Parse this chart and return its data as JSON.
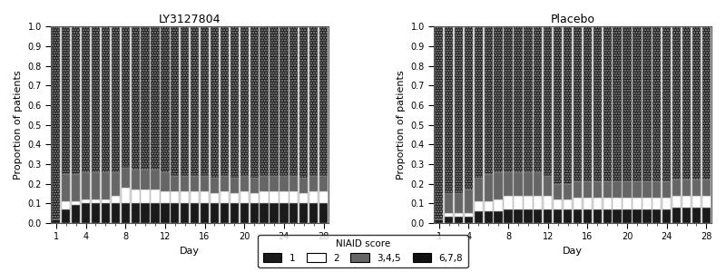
{
  "title_left": "LY3127804",
  "title_right": "Placebo",
  "xlabel": "Day",
  "ylabel": "Proportion of patients",
  "legend_title": "NIAID score",
  "legend_labels": [
    "1",
    "2",
    "3,4,5",
    "6,7,8"
  ],
  "days": [
    1,
    2,
    3,
    4,
    5,
    6,
    7,
    8,
    9,
    10,
    11,
    12,
    13,
    14,
    15,
    16,
    17,
    18,
    19,
    20,
    21,
    22,
    23,
    24,
    25,
    26,
    27,
    28
  ],
  "xticks": [
    1,
    4,
    8,
    12,
    16,
    20,
    24,
    28
  ],
  "yticks": [
    0.0,
    0.1,
    0.2,
    0.3,
    0.4,
    0.5,
    0.6,
    0.7,
    0.8,
    0.9,
    1.0
  ],
  "ly_score1": [
    0.02,
    0.07,
    0.09,
    0.1,
    0.1,
    0.1,
    0.1,
    0.1,
    0.1,
    0.1,
    0.1,
    0.1,
    0.1,
    0.1,
    0.1,
    0.1,
    0.1,
    0.1,
    0.1,
    0.1,
    0.1,
    0.1,
    0.1,
    0.1,
    0.1,
    0.1,
    0.1,
    0.1
  ],
  "ly_score2": [
    0.0,
    0.04,
    0.02,
    0.02,
    0.02,
    0.02,
    0.04,
    0.08,
    0.07,
    0.07,
    0.07,
    0.06,
    0.06,
    0.06,
    0.06,
    0.06,
    0.05,
    0.06,
    0.05,
    0.06,
    0.05,
    0.06,
    0.06,
    0.06,
    0.06,
    0.05,
    0.06,
    0.06
  ],
  "ly_score345": [
    0.0,
    0.14,
    0.14,
    0.14,
    0.14,
    0.14,
    0.12,
    0.1,
    0.1,
    0.1,
    0.1,
    0.1,
    0.08,
    0.08,
    0.08,
    0.08,
    0.08,
    0.08,
    0.08,
    0.08,
    0.08,
    0.08,
    0.08,
    0.08,
    0.08,
    0.08,
    0.08,
    0.08
  ],
  "ly_score678": [
    0.98,
    0.75,
    0.75,
    0.74,
    0.74,
    0.74,
    0.74,
    0.72,
    0.73,
    0.73,
    0.73,
    0.74,
    0.76,
    0.76,
    0.76,
    0.76,
    0.77,
    0.76,
    0.77,
    0.76,
    0.77,
    0.76,
    0.76,
    0.76,
    0.76,
    0.77,
    0.76,
    0.76
  ],
  "pl_score1": [
    0.02,
    0.03,
    0.03,
    0.03,
    0.06,
    0.06,
    0.06,
    0.07,
    0.07,
    0.07,
    0.07,
    0.07,
    0.07,
    0.07,
    0.07,
    0.07,
    0.07,
    0.07,
    0.07,
    0.07,
    0.07,
    0.07,
    0.07,
    0.07,
    0.08,
    0.08,
    0.08,
    0.08
  ],
  "pl_score2": [
    0.0,
    0.02,
    0.02,
    0.02,
    0.05,
    0.05,
    0.06,
    0.07,
    0.07,
    0.07,
    0.07,
    0.07,
    0.05,
    0.05,
    0.06,
    0.06,
    0.06,
    0.06,
    0.06,
    0.06,
    0.06,
    0.06,
    0.06,
    0.06,
    0.06,
    0.06,
    0.06,
    0.06
  ],
  "pl_score345": [
    0.0,
    0.1,
    0.1,
    0.12,
    0.12,
    0.14,
    0.14,
    0.12,
    0.12,
    0.12,
    0.12,
    0.1,
    0.08,
    0.08,
    0.08,
    0.08,
    0.08,
    0.08,
    0.08,
    0.08,
    0.08,
    0.08,
    0.08,
    0.08,
    0.08,
    0.08,
    0.08,
    0.08
  ],
  "pl_score678": [
    0.98,
    0.85,
    0.85,
    0.83,
    0.77,
    0.75,
    0.74,
    0.74,
    0.74,
    0.74,
    0.74,
    0.76,
    0.8,
    0.8,
    0.79,
    0.79,
    0.79,
    0.79,
    0.79,
    0.79,
    0.79,
    0.79,
    0.79,
    0.79,
    0.78,
    0.78,
    0.78,
    0.78
  ],
  "color1": "#1a1a1a",
  "color2": "#ffffff",
  "color345": "#666666",
  "color678_bg": "#1a1a1a",
  "bar_edge_color": "#999999",
  "bar_width": 0.85
}
